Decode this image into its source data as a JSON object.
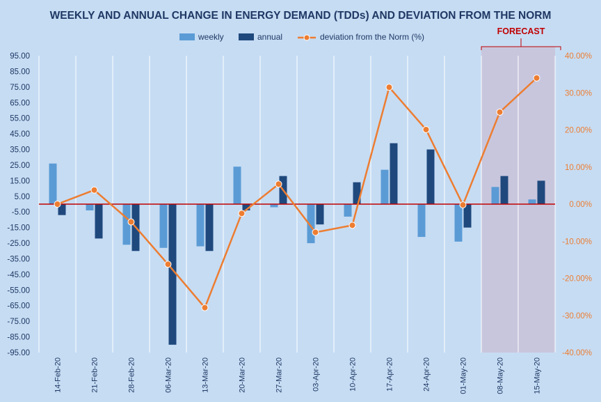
{
  "chart_data": {
    "type": "bar",
    "title": "WEEKLY  AND ANNUAL CHANGE IN ENERGY DEMAND (TDDs) AND DEVIATION FROM THE NORM",
    "categories": [
      "14-Feb-20",
      "21-Feb-20",
      "28-Feb-20",
      "06-Mar-20",
      "13-Mar-20",
      "20-Mar-20",
      "27-Mar-20",
      "03-Apr-20",
      "10-Apr-20",
      "17-Apr-20",
      "24-Apr-20",
      "01-May-20",
      "08-May-20",
      "15-May-20"
    ],
    "series": [
      {
        "name": "weekly",
        "type": "bar",
        "axis": "left",
        "color": "#5b9bd5",
        "values": [
          26,
          -4,
          -26,
          -28,
          -27,
          24,
          -2,
          -25,
          -8,
          22,
          -21,
          -24,
          11,
          3
        ]
      },
      {
        "name": "annual",
        "type": "bar",
        "axis": "left",
        "color": "#1f497d",
        "values": [
          -7,
          -22,
          -30,
          -90,
          -30,
          -4,
          18,
          -13,
          14,
          39,
          35,
          -15,
          18,
          15
        ]
      },
      {
        "name": "deviation from the Norm (%)",
        "type": "line",
        "axis": "right",
        "color": "#ed7d31",
        "values": [
          0.0,
          3.8,
          -4.8,
          -16.2,
          -27.9,
          -2.5,
          5.4,
          -7.6,
          -5.7,
          31.5,
          20.1,
          -0.2,
          24.8,
          34.0
        ]
      }
    ],
    "y_left": {
      "min": -95,
      "max": 95,
      "step": 10,
      "ticks": [
        "95.00",
        "85.00",
        "75.00",
        "65.00",
        "55.00",
        "45.00",
        "35.00",
        "25.00",
        "15.00",
        "5.00",
        "-5.00",
        "-15.00",
        "-25.00",
        "-35.00",
        "-45.00",
        "-55.00",
        "-65.00",
        "-75.00",
        "-85.00",
        "-95.00"
      ]
    },
    "y_right": {
      "min": -40,
      "max": 40,
      "step": 10,
      "ticks": [
        "40.00%",
        "30.00%",
        "20.00%",
        "10.00%",
        "0.00%",
        "-10.00%",
        "-20.00%",
        "-30.00%",
        "-40.00%"
      ]
    },
    "legend": {
      "position": "top",
      "items": [
        "weekly",
        "annual",
        "deviation from the Norm (%)"
      ]
    },
    "forecast": {
      "label": "FORECAST",
      "categories": [
        "08-May-20",
        "15-May-20"
      ]
    },
    "grid": {
      "vertical": true,
      "horizontal": false
    },
    "zero_line_color": "#c00000",
    "background_color": "#c6dcf3"
  }
}
